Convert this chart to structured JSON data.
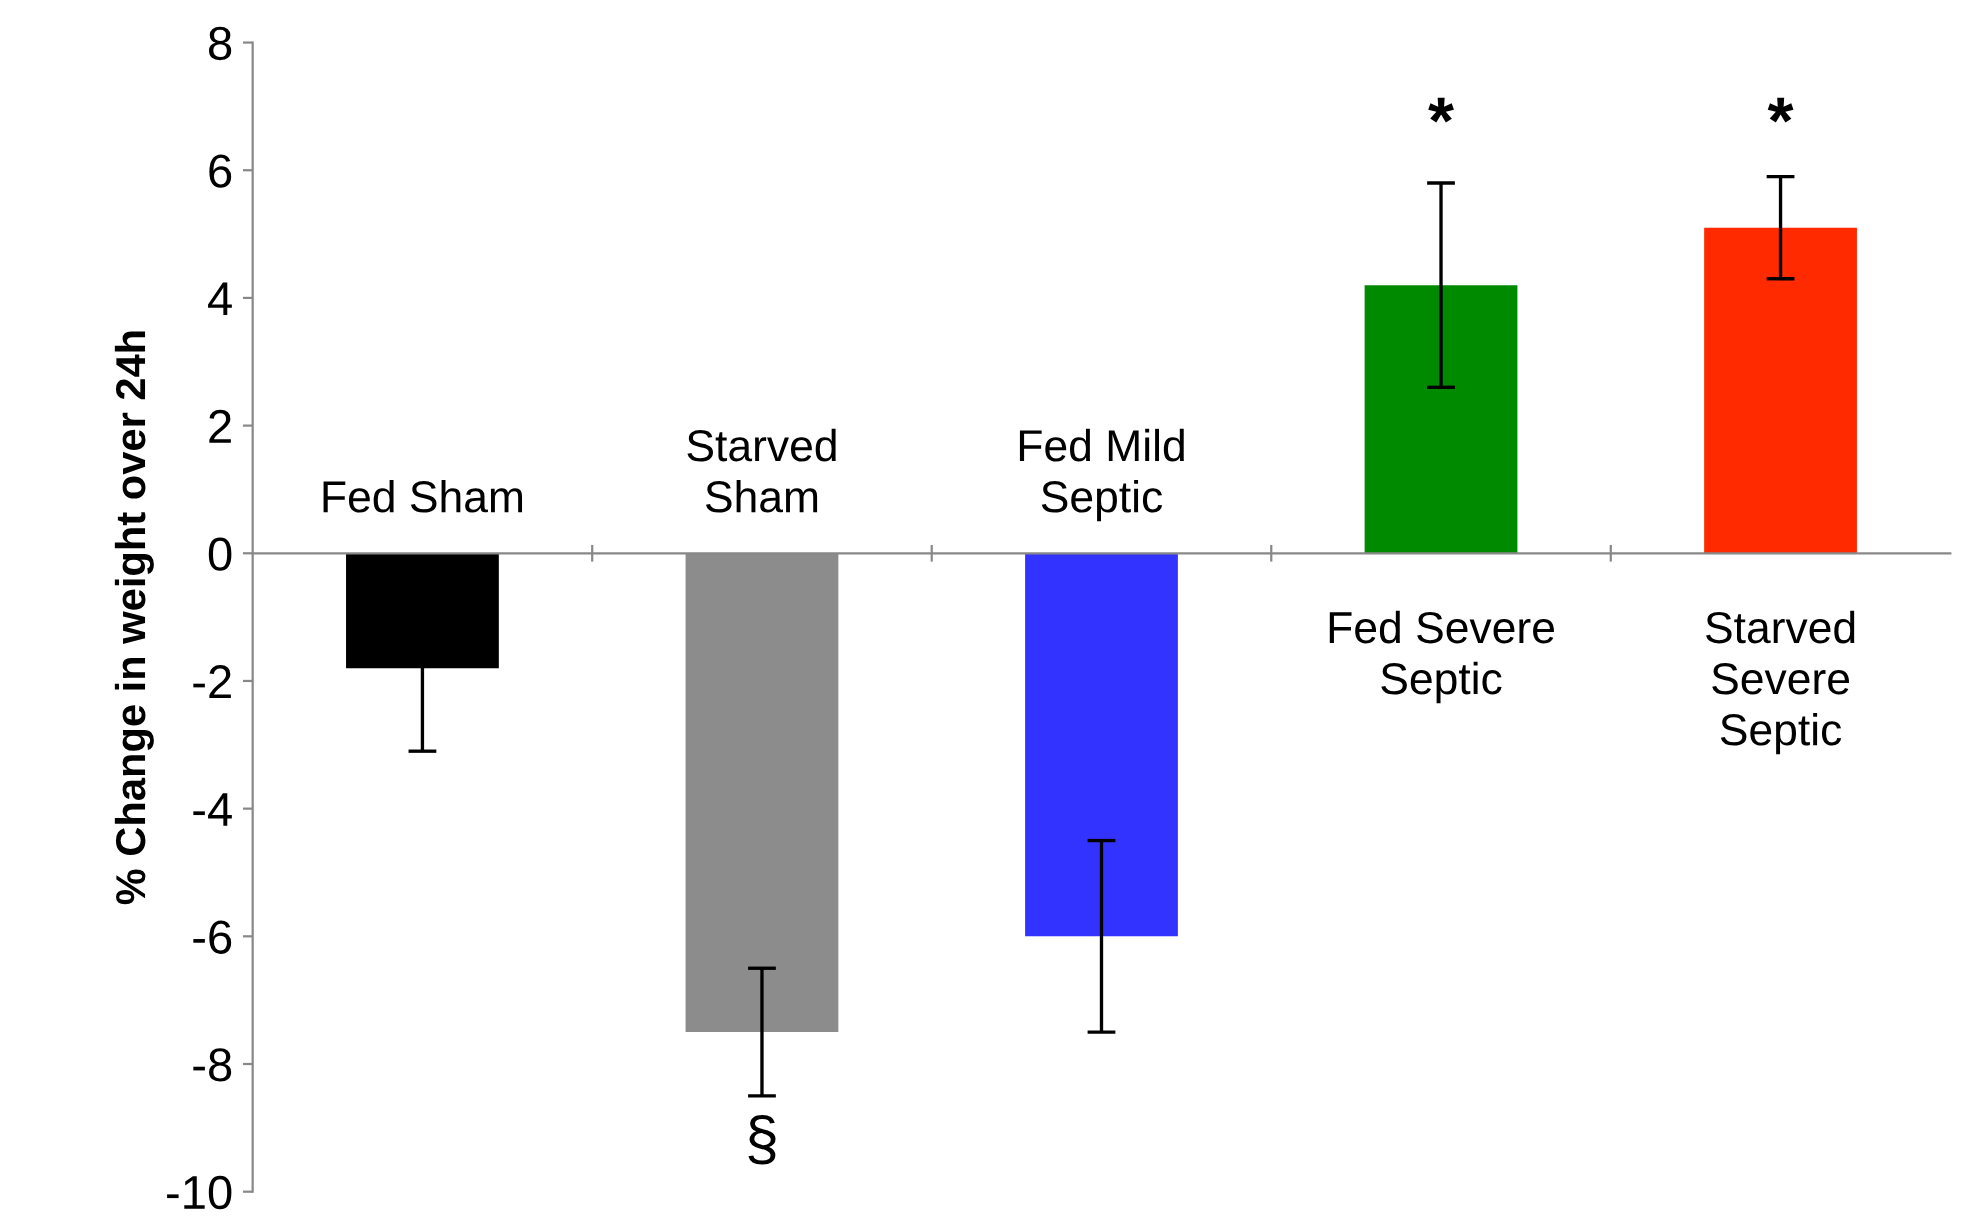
{
  "chart_data": {
    "type": "bar",
    "ylabel": "% Change in weight over 24h",
    "categories": [
      "Fed Sham",
      "Starved\nSham",
      "Fed Mild\nSeptic",
      "Fed Severe\nSeptic",
      "Starved\nSevere\nSeptic"
    ],
    "values": [
      -1.8,
      -7.5,
      -6.0,
      4.2,
      5.1
    ],
    "colors": [
      "#000000",
      "#8c8c8c",
      "#3333ff",
      "#008a00",
      "#ff2a00"
    ],
    "errors": [
      1.3,
      1.0,
      1.5,
      1.6,
      0.8
    ],
    "ylim": [
      -10,
      8
    ],
    "yticks": [
      -10,
      -8,
      -6,
      -4,
      -2,
      0,
      2,
      4,
      6,
      8
    ],
    "annotations": [
      "§",
      "*",
      "*"
    ],
    "grid": false
  }
}
